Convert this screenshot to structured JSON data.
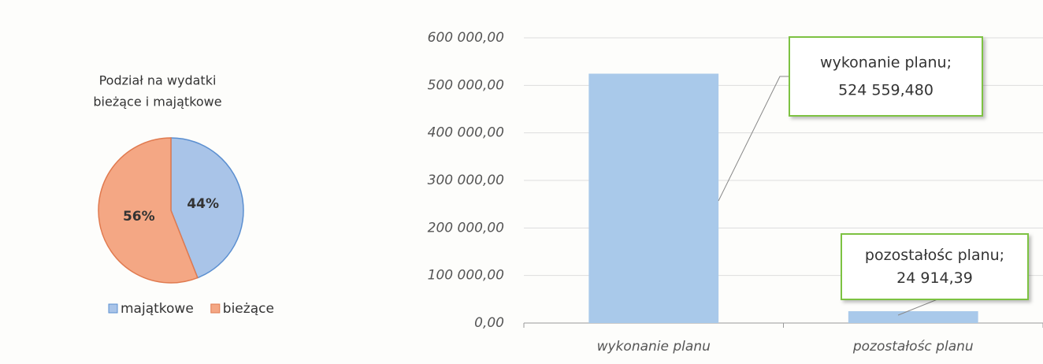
{
  "chart_data": [
    {
      "type": "pie",
      "title": [
        "Podział na wydatki",
        "bieżące  i majątkowe"
      ],
      "categories": [
        "majątkowe",
        "bieżące"
      ],
      "values": [
        44,
        56
      ],
      "value_labels": [
        "44%",
        "56%"
      ],
      "colors": [
        "#a9c4e8",
        "#f4a784"
      ],
      "edge_colors": [
        "#5b8fd0",
        "#e07a4f"
      ],
      "legend": "bottom"
    },
    {
      "type": "bar",
      "categories": [
        "wykonanie planu",
        "pozostałośc planu"
      ],
      "values": [
        524559.48,
        24914.39
      ],
      "value_labels": [
        "524 559,480",
        "24 914,39"
      ],
      "callouts": [
        "wykonanie planu;",
        "pozostałośc planu;"
      ],
      "color": "#a9c9ea",
      "ylim": [
        0,
        600000
      ],
      "yticks": [
        {
          "value": 0,
          "label": "0,00"
        },
        {
          "value": 100000,
          "label": "100 000,00"
        },
        {
          "value": 200000,
          "label": "200 000,00"
        },
        {
          "value": 300000,
          "label": "300 000,00"
        },
        {
          "value": 400000,
          "label": "400 000,00"
        },
        {
          "value": 500000,
          "label": "500 000,00"
        },
        {
          "value": 600000,
          "label": "600 000,00"
        }
      ],
      "grid": true
    }
  ]
}
